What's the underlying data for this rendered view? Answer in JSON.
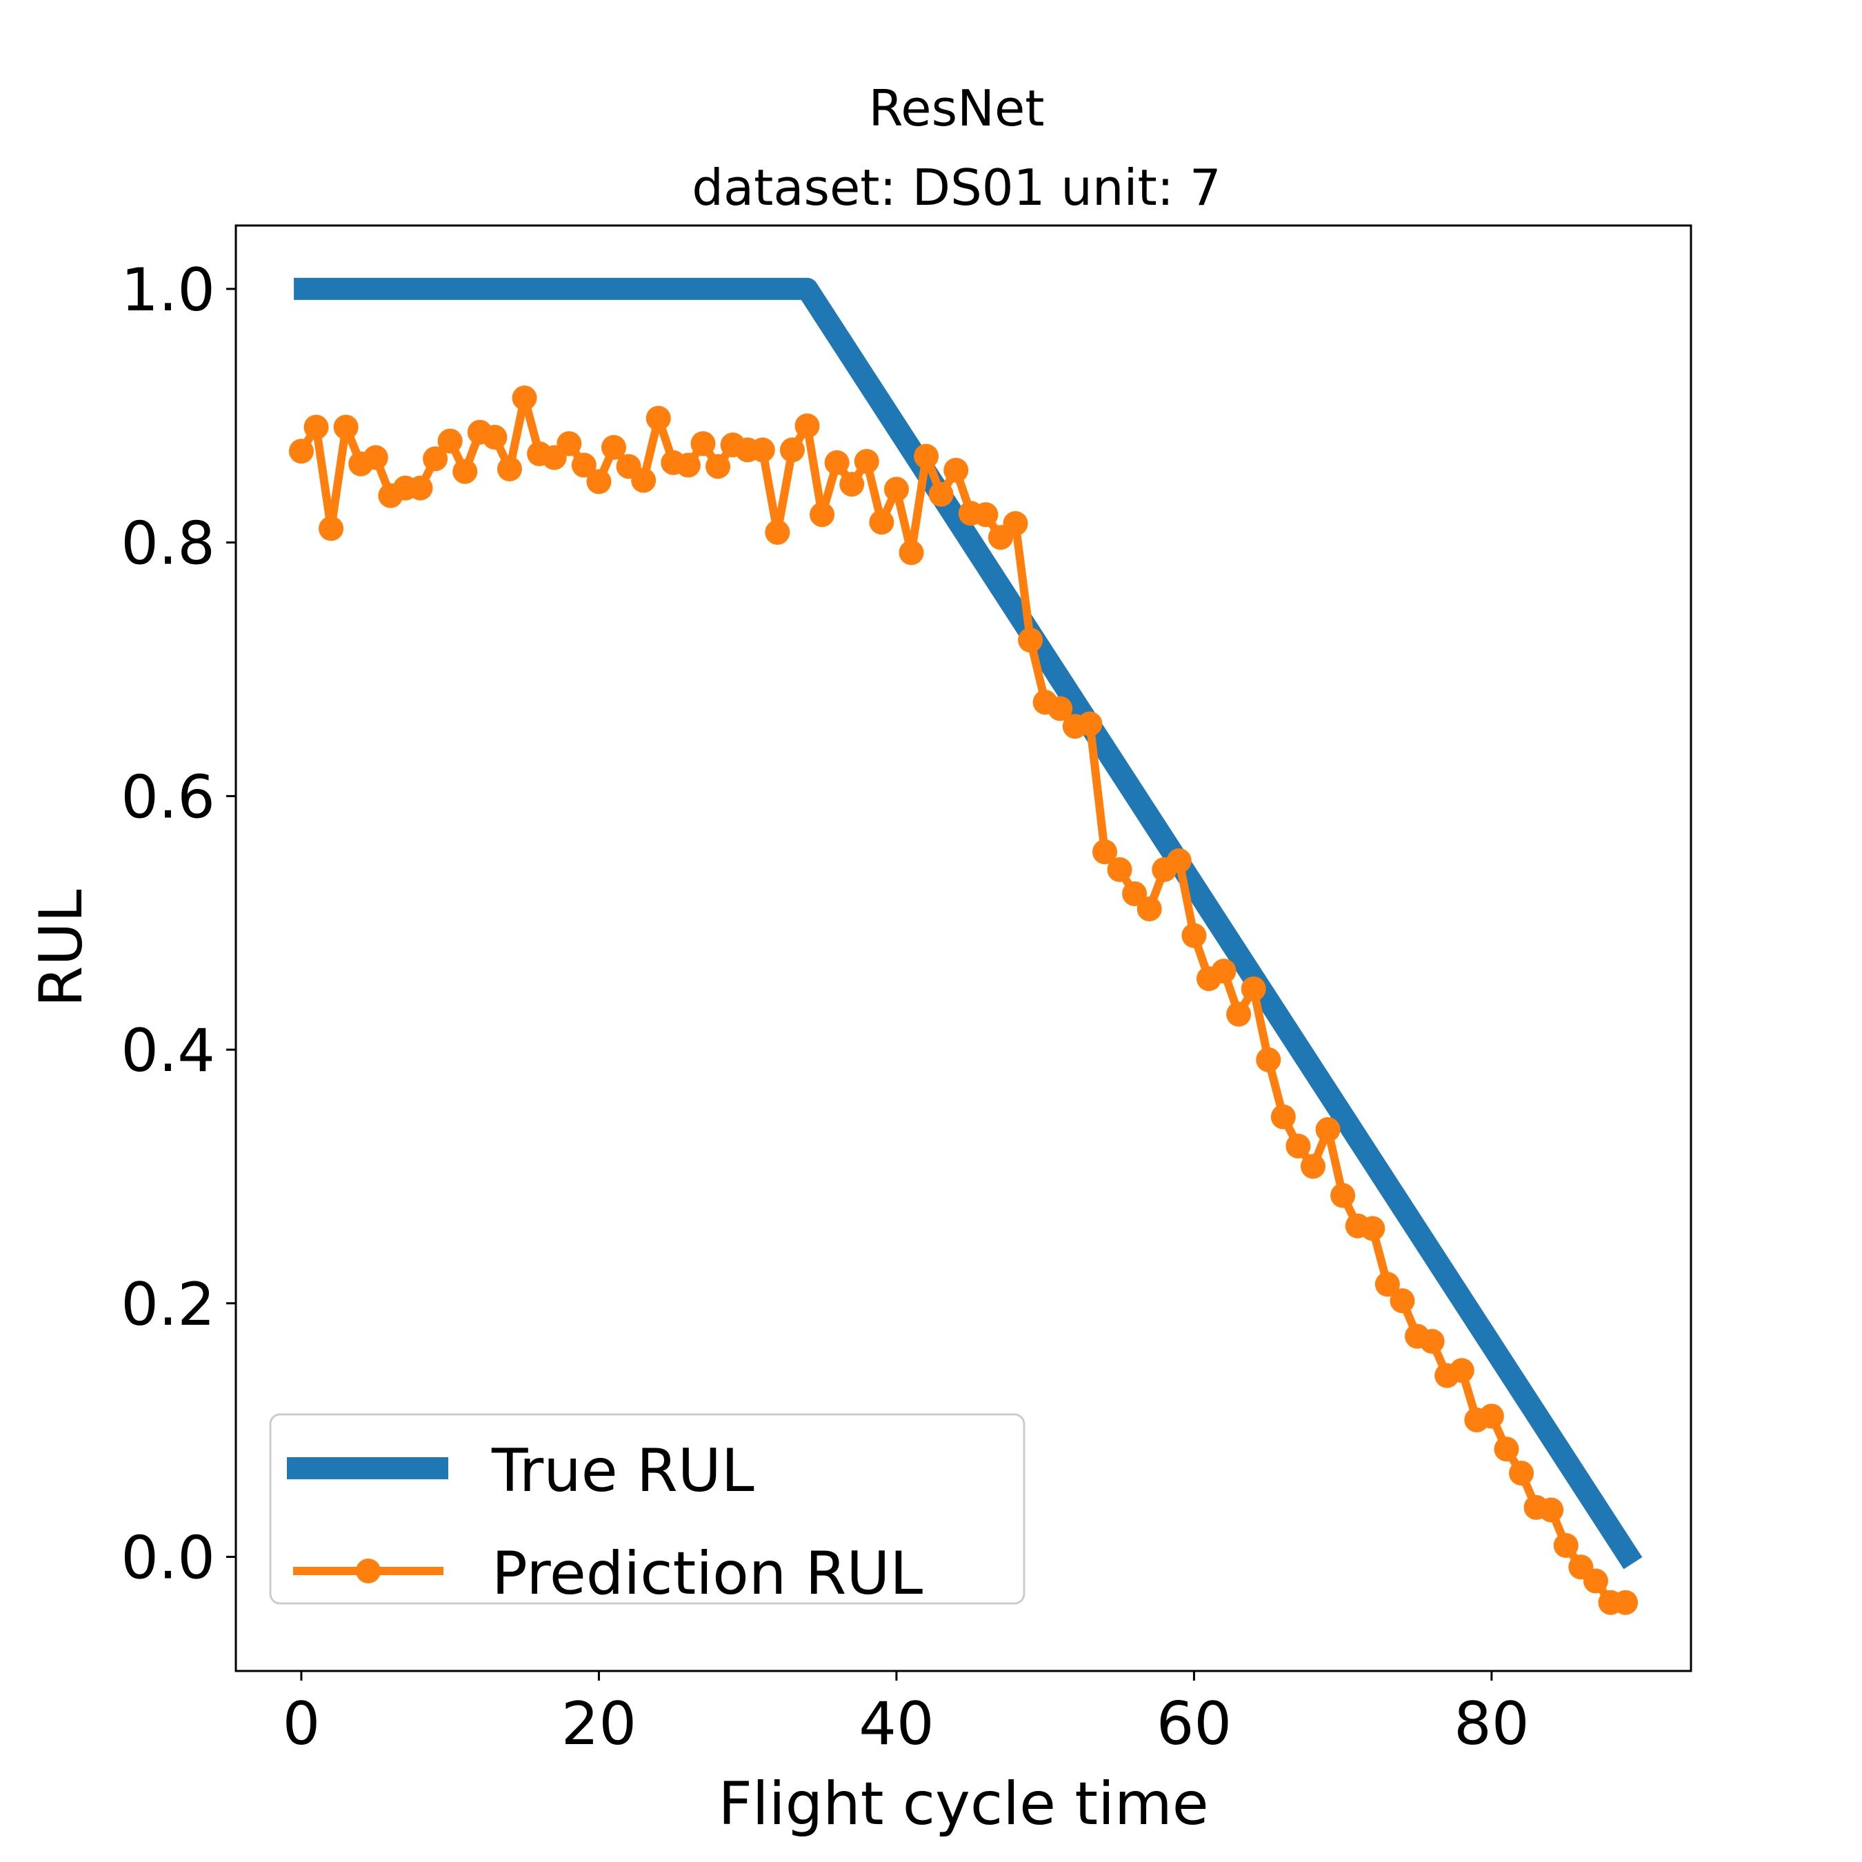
{
  "chart_data": {
    "type": "line",
    "title": "ResNet",
    "subtitle": "dataset: DS01 unit: 7",
    "xlabel": "Flight cycle time",
    "ylabel": "RUL",
    "xlim": [
      -4.4,
      93.4
    ],
    "ylim": [
      -0.09,
      1.05
    ],
    "xticks": [
      0,
      20,
      40,
      60,
      80
    ],
    "xtick_labels": [
      "0",
      "20",
      "40",
      "60",
      "80"
    ],
    "yticks": [
      0.0,
      0.2,
      0.4,
      0.6,
      0.8,
      1.0
    ],
    "ytick_labels": [
      "0.0",
      "0.2",
      "0.4",
      "0.6",
      "0.8",
      "1.0"
    ],
    "grid": false,
    "legend_position": "lower-left",
    "series": [
      {
        "name": "True RUL",
        "color": "#1f77b4",
        "marker": "none",
        "x": [
          -0.5,
          34,
          89.5
        ],
        "y": [
          1.0,
          1.0,
          -0.005
        ]
      },
      {
        "name": "Prediction RUL",
        "color": "#ff7f0e",
        "marker": "circle",
        "x": [
          0,
          1,
          2,
          3,
          4,
          5,
          6,
          7,
          8,
          9,
          10,
          11,
          12,
          13,
          14,
          15,
          16,
          17,
          18,
          19,
          20,
          21,
          22,
          23,
          24,
          25,
          26,
          27,
          28,
          29,
          30,
          31,
          32,
          33,
          34,
          35,
          36,
          37,
          38,
          39,
          40,
          41,
          42,
          43,
          44,
          45,
          46,
          47,
          48,
          49,
          50,
          51,
          52,
          53,
          54,
          55,
          56,
          57,
          58,
          59,
          60,
          61,
          62,
          63,
          64,
          65,
          66,
          67,
          68,
          69,
          70,
          71,
          72,
          73,
          74,
          75,
          76,
          77,
          78,
          79,
          80,
          81,
          82,
          83,
          84,
          85,
          86,
          87,
          88,
          89
        ],
        "y": [
          0.872,
          0.891,
          0.811,
          0.891,
          0.862,
          0.867,
          0.837,
          0.843,
          0.843,
          0.866,
          0.88,
          0.856,
          0.887,
          0.883,
          0.858,
          0.914,
          0.87,
          0.867,
          0.878,
          0.861,
          0.848,
          0.875,
          0.86,
          0.849,
          0.898,
          0.863,
          0.861,
          0.878,
          0.86,
          0.877,
          0.873,
          0.873,
          0.808,
          0.873,
          0.892,
          0.822,
          0.863,
          0.846,
          0.864,
          0.816,
          0.842,
          0.792,
          0.868,
          0.838,
          0.857,
          0.823,
          0.822,
          0.804,
          0.815,
          0.723,
          0.674,
          0.669,
          0.655,
          0.657,
          0.556,
          0.542,
          0.523,
          0.511,
          0.542,
          0.549,
          0.49,
          0.456,
          0.462,
          0.428,
          0.448,
          0.392,
          0.347,
          0.324,
          0.308,
          0.337,
          0.285,
          0.261,
          0.259,
          0.215,
          0.202,
          0.174,
          0.17,
          0.143,
          0.147,
          0.108,
          0.111,
          0.085,
          0.066,
          0.039,
          0.037,
          0.009,
          -0.008,
          -0.019,
          -0.036,
          -0.036
        ]
      }
    ]
  }
}
